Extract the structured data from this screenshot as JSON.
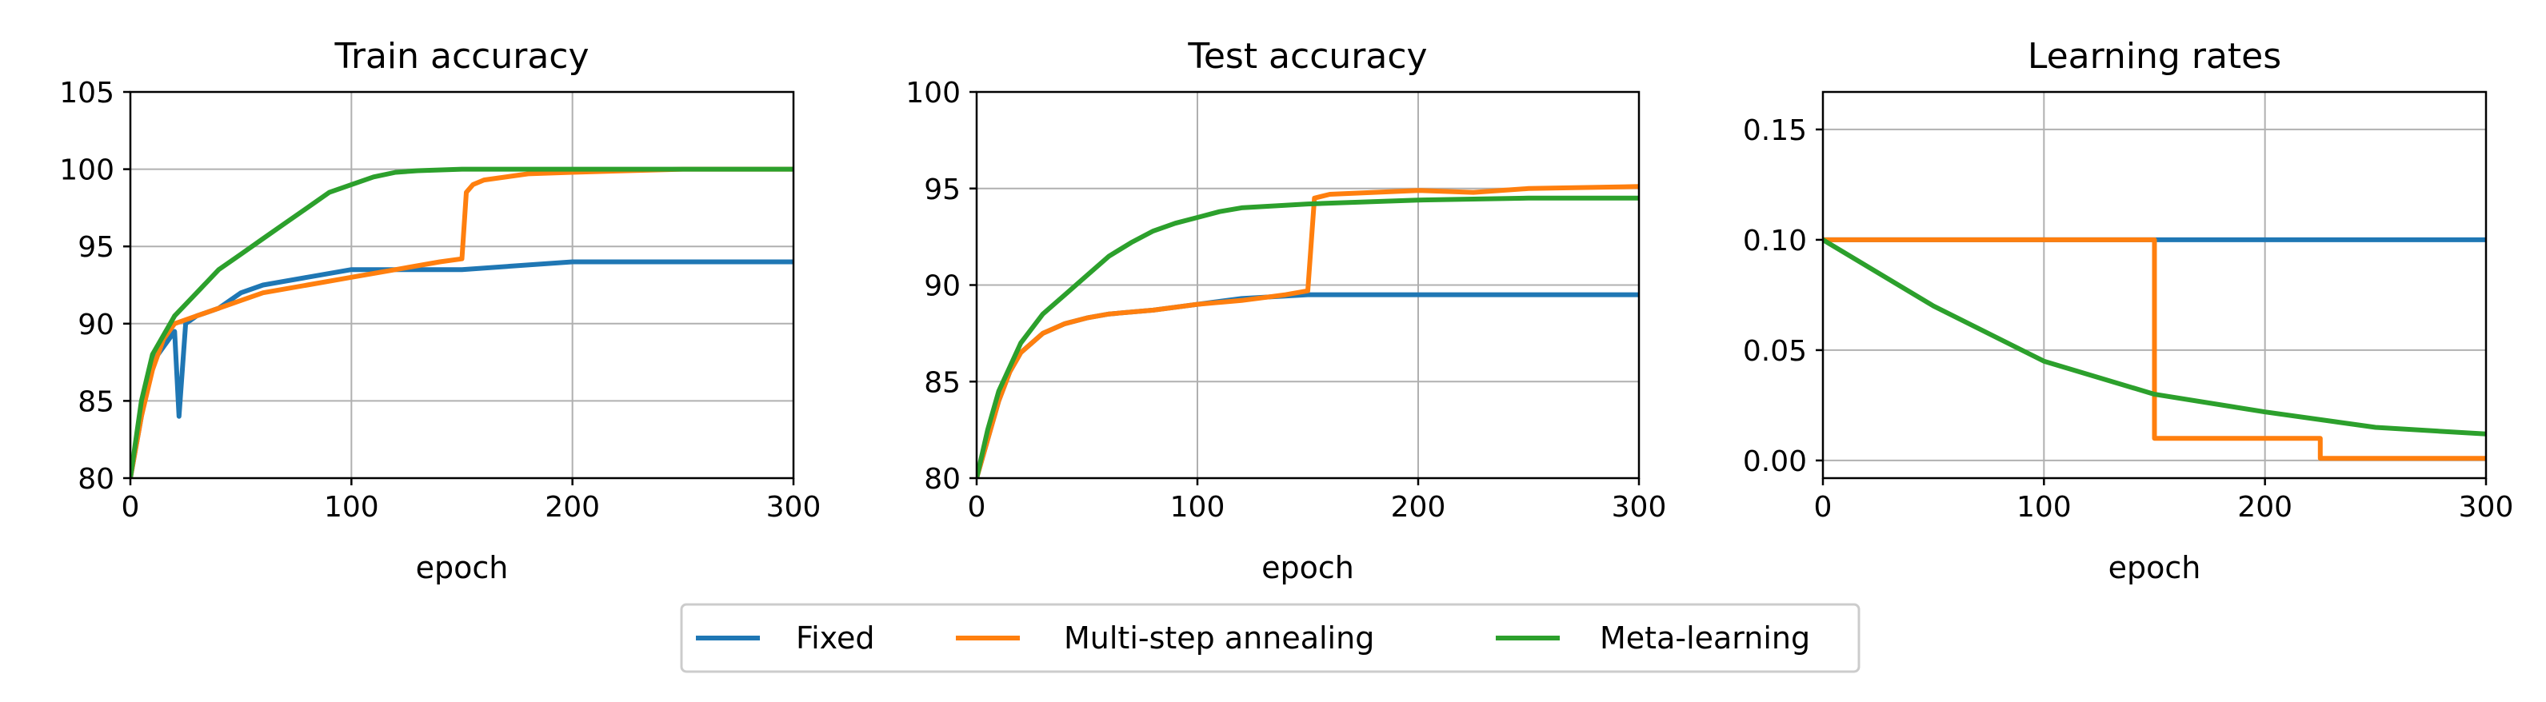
{
  "legend": {
    "placement": "bottom-center",
    "items": [
      {
        "label": "Fixed",
        "color": "#1f77b4"
      },
      {
        "label": "Multi-step annealing",
        "color": "#ff7f0e"
      },
      {
        "label": "Meta-learning",
        "color": "#2ca02c"
      }
    ]
  },
  "chart_data": [
    {
      "type": "line",
      "title": "Train accuracy",
      "xlabel": "epoch",
      "ylabel": "",
      "xlim": [
        0,
        300
      ],
      "ylim": [
        80,
        105
      ],
      "xticks": [
        0,
        100,
        200,
        300
      ],
      "yticks": [
        80,
        85,
        90,
        95,
        100,
        105
      ],
      "grid": true,
      "series": [
        {
          "name": "Fixed",
          "color": "#1f77b4",
          "x": [
            0,
            5,
            10,
            15,
            20,
            22,
            25,
            30,
            40,
            50,
            60,
            80,
            100,
            120,
            150,
            200,
            250,
            300
          ],
          "y": [
            80,
            84,
            87.5,
            88.5,
            89.5,
            84,
            90,
            90.5,
            91,
            92,
            92.5,
            93,
            93.5,
            93.5,
            93.5,
            94,
            94,
            94
          ]
        },
        {
          "name": "Multi-step annealing",
          "color": "#ff7f0e",
          "x": [
            0,
            5,
            10,
            15,
            20,
            30,
            40,
            50,
            60,
            80,
            100,
            120,
            140,
            150,
            152,
            155,
            160,
            180,
            200,
            225,
            250,
            300
          ],
          "y": [
            80,
            84,
            87,
            89,
            90,
            90.5,
            91,
            91.5,
            92,
            92.5,
            93,
            93.5,
            94,
            94.2,
            98.5,
            99,
            99.3,
            99.7,
            99.8,
            99.9,
            100,
            100
          ]
        },
        {
          "name": "Meta-learning",
          "color": "#2ca02c",
          "x": [
            0,
            5,
            10,
            20,
            30,
            40,
            50,
            60,
            70,
            80,
            90,
            100,
            110,
            120,
            130,
            150,
            200,
            250,
            300
          ],
          "y": [
            80,
            85,
            88,
            90.5,
            92,
            93.5,
            94.5,
            95.5,
            96.5,
            97.5,
            98.5,
            99,
            99.5,
            99.8,
            99.9,
            100,
            100,
            100,
            100
          ]
        }
      ]
    },
    {
      "type": "line",
      "title": "Test accuracy",
      "xlabel": "epoch",
      "ylabel": "",
      "xlim": [
        0,
        300
      ],
      "ylim": [
        80,
        100
      ],
      "xticks": [
        0,
        100,
        200,
        300
      ],
      "yticks": [
        80,
        85,
        90,
        95,
        100
      ],
      "grid": true,
      "series": [
        {
          "name": "Fixed",
          "color": "#1f77b4",
          "x": [
            0,
            5,
            10,
            15,
            20,
            30,
            40,
            50,
            60,
            80,
            100,
            120,
            150,
            200,
            250,
            300
          ],
          "y": [
            80,
            82,
            84,
            85.5,
            86.5,
            87.5,
            88,
            88.3,
            88.5,
            88.7,
            89,
            89.3,
            89.5,
            89.5,
            89.5,
            89.5
          ]
        },
        {
          "name": "Multi-step annealing",
          "color": "#ff7f0e",
          "x": [
            0,
            5,
            10,
            15,
            20,
            30,
            40,
            50,
            60,
            80,
            100,
            120,
            140,
            150,
            153,
            160,
            180,
            200,
            225,
            250,
            300
          ],
          "y": [
            80,
            82,
            84,
            85.5,
            86.5,
            87.5,
            88,
            88.3,
            88.5,
            88.7,
            89,
            89.2,
            89.5,
            89.7,
            94.5,
            94.7,
            94.8,
            94.9,
            94.8,
            95,
            95.1
          ]
        },
        {
          "name": "Meta-learning",
          "color": "#2ca02c",
          "x": [
            0,
            5,
            10,
            20,
            30,
            40,
            50,
            60,
            70,
            80,
            90,
            100,
            110,
            120,
            150,
            200,
            250,
            300
          ],
          "y": [
            80,
            82.5,
            84.5,
            87,
            88.5,
            89.5,
            90.5,
            91.5,
            92.2,
            92.8,
            93.2,
            93.5,
            93.8,
            94,
            94.2,
            94.4,
            94.5,
            94.5
          ]
        }
      ]
    },
    {
      "type": "line",
      "title": "Learning rates",
      "xlabel": "epoch",
      "ylabel": "",
      "xlim": [
        0,
        300
      ],
      "ylim": [
        -0.008,
        0.167
      ],
      "xticks": [
        0,
        100,
        200,
        300
      ],
      "yticks": [
        0.0,
        0.05,
        0.1,
        0.15
      ],
      "ytick_labels": [
        "0.00",
        "0.05",
        "0.10",
        "0.15"
      ],
      "grid": true,
      "series": [
        {
          "name": "Fixed",
          "color": "#1f77b4",
          "x": [
            0,
            300
          ],
          "y": [
            0.1,
            0.1
          ]
        },
        {
          "name": "Multi-step annealing",
          "color": "#ff7f0e",
          "x": [
            0,
            150,
            150,
            225,
            225,
            300
          ],
          "y": [
            0.1,
            0.1,
            0.01,
            0.01,
            0.001,
            0.001
          ]
        },
        {
          "name": "Meta-learning",
          "color": "#2ca02c",
          "x": [
            0,
            50,
            100,
            150,
            200,
            250,
            300
          ],
          "y": [
            0.1,
            0.07,
            0.045,
            0.03,
            0.022,
            0.015,
            0.012
          ]
        }
      ]
    }
  ]
}
